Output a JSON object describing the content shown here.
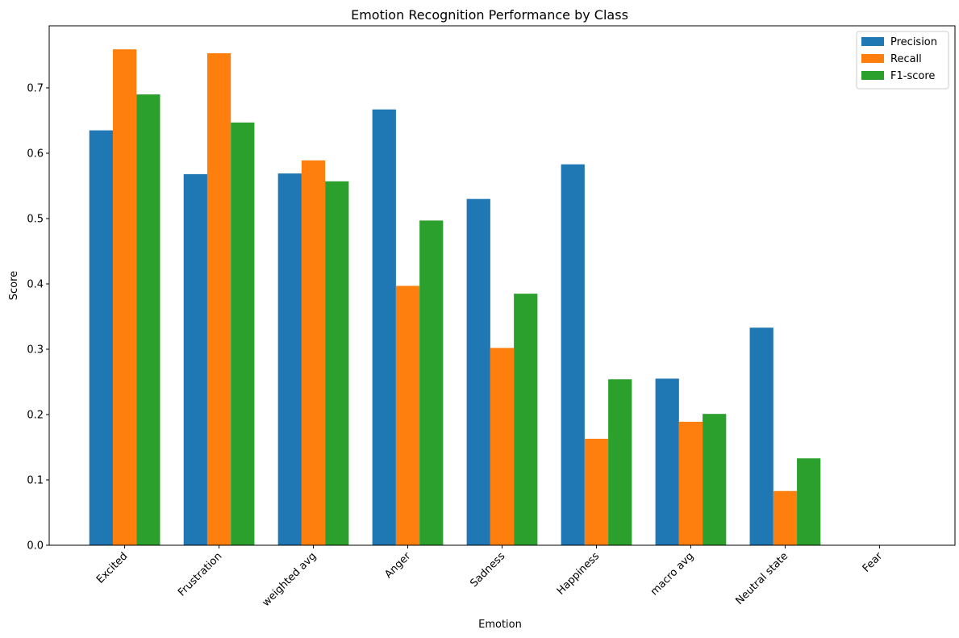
{
  "chart_data": {
    "type": "bar",
    "title": "Emotion Recognition Performance by Class",
    "xlabel": "Emotion",
    "ylabel": "Score",
    "ylim": [
      0,
      0.795
    ],
    "yticks": [
      "0.0",
      "0.1",
      "0.2",
      "0.3",
      "0.4",
      "0.5",
      "0.6",
      "0.7"
    ],
    "categories": [
      "Excited",
      "Frustration",
      "weighted avg",
      "Anger",
      "Sadness",
      "Happiness",
      "macro avg",
      "Neutral state",
      "Fear"
    ],
    "series": [
      {
        "name": "Precision",
        "color": "#1f77b4",
        "values": [
          0.635,
          0.568,
          0.569,
          0.667,
          0.53,
          0.583,
          0.255,
          0.333,
          0.0
        ]
      },
      {
        "name": "Recall",
        "color": "#ff7f0e",
        "values": [
          0.759,
          0.753,
          0.589,
          0.397,
          0.302,
          0.163,
          0.189,
          0.083,
          0.0
        ]
      },
      {
        "name": "F1-score",
        "color": "#2ca02c",
        "values": [
          0.69,
          0.647,
          0.557,
          0.497,
          0.385,
          0.254,
          0.201,
          0.133,
          0.0
        ]
      }
    ],
    "legend_position": "top-right",
    "grid": false
  }
}
